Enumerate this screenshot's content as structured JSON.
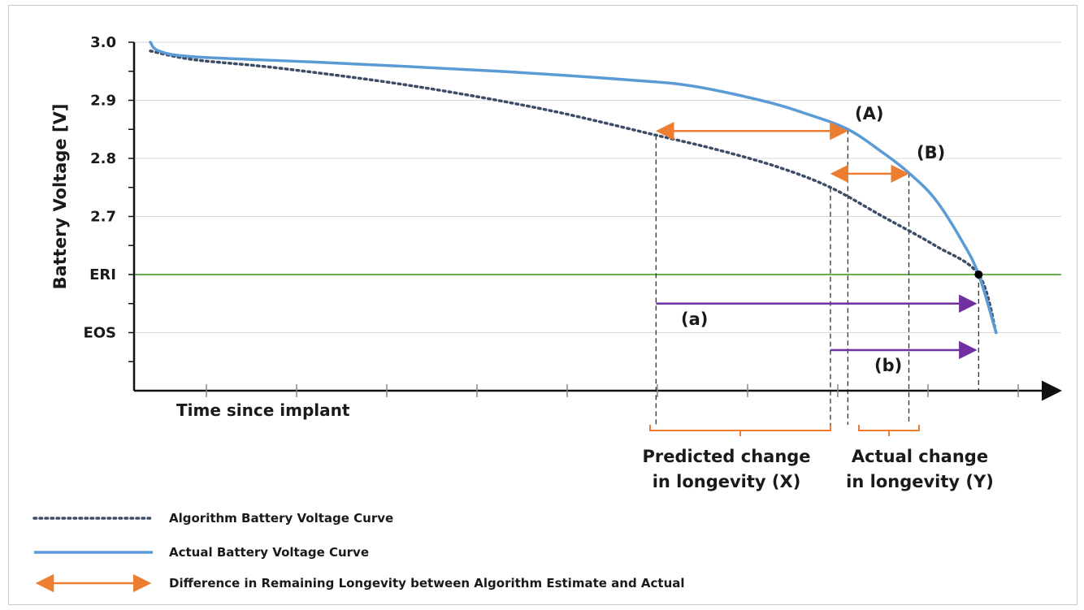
{
  "chart_data": {
    "type": "line",
    "ylabel": "Battery Voltage [V]",
    "xlabel": "Time since implant",
    "y_tick_labels": [
      "3.0",
      "2.9",
      "2.8",
      "2.7",
      "ERI",
      "EOS"
    ],
    "y_tick_values": [
      3.0,
      2.9,
      2.8,
      2.7,
      2.6,
      2.5
    ],
    "ylim": [
      2.4,
      3.0
    ],
    "xlim": [
      0,
      100
    ],
    "grid": true,
    "reference_lines": [
      {
        "name": "ERI",
        "value": 2.6,
        "color": "#6ab04c"
      }
    ],
    "series": [
      {
        "name": "Actual Battery Voltage Curve",
        "style": "solid",
        "color": "#5b9bd5",
        "x": [
          0,
          1,
          5,
          20,
          40,
          55,
          62,
          70,
          75,
          80,
          84,
          87,
          90,
          93,
          95,
          97
        ],
        "y": [
          3.0,
          2.985,
          2.975,
          2.965,
          2.95,
          2.935,
          2.925,
          2.9,
          2.878,
          2.85,
          2.81,
          2.775,
          2.73,
          2.66,
          2.6,
          2.5
        ]
      },
      {
        "name": "Algorithm Battery Voltage Curve",
        "style": "dotted",
        "color": "#3d4d66",
        "x": [
          0,
          5,
          15,
          30,
          45,
          58,
          65,
          72,
          78,
          84,
          90,
          95,
          97
        ],
        "y": [
          2.985,
          2.97,
          2.955,
          2.925,
          2.885,
          2.84,
          2.815,
          2.785,
          2.75,
          2.7,
          2.65,
          2.6,
          2.5
        ]
      }
    ],
    "annotations": [
      {
        "label": "(A)",
        "x": 80,
        "y": 2.85
      },
      {
        "label": "(B)",
        "x": 87,
        "y": 2.775
      },
      {
        "label": "(a)",
        "x_start": 58,
        "x_end": 95,
        "y": 2.55
      },
      {
        "label": "(b)",
        "x_start": 78,
        "x_end": 95,
        "y": 2.47
      },
      {
        "label": "Predicted change in longevity (X)",
        "x_start": 58,
        "x_end": 78
      },
      {
        "label": "Actual change in longevity (Y)",
        "x_start": 80,
        "x_end": 87
      }
    ],
    "legend": {
      "placement": "bottom-left",
      "items": [
        {
          "label": "Algorithm Battery Voltage Curve",
          "style": "dotted",
          "color": "#3d4d66"
        },
        {
          "label": "Actual Battery Voltage Curve",
          "style": "solid",
          "color": "#5b9bd5"
        },
        {
          "label": "Difference in Remaining Longevity between Algorithm Estimate and Actual",
          "style": "double-arrow",
          "color": "#ed7d31"
        }
      ]
    }
  },
  "annotation_text": {
    "A": "(A)",
    "B": "(B)",
    "a": "(a)",
    "b": "(b)",
    "predicted_line1": "Predicted change",
    "predicted_line2": "in longevity (X)",
    "actual_line1": "Actual change",
    "actual_line2": "in longevity (Y)"
  },
  "colors": {
    "actual": "#5b9bd5",
    "algorithm": "#3d4d66",
    "eri_line": "#6ab04c",
    "difference_arrow": "#ed7d31",
    "purple_arrow": "#7030a0",
    "grid": "#d9d9d9"
  }
}
